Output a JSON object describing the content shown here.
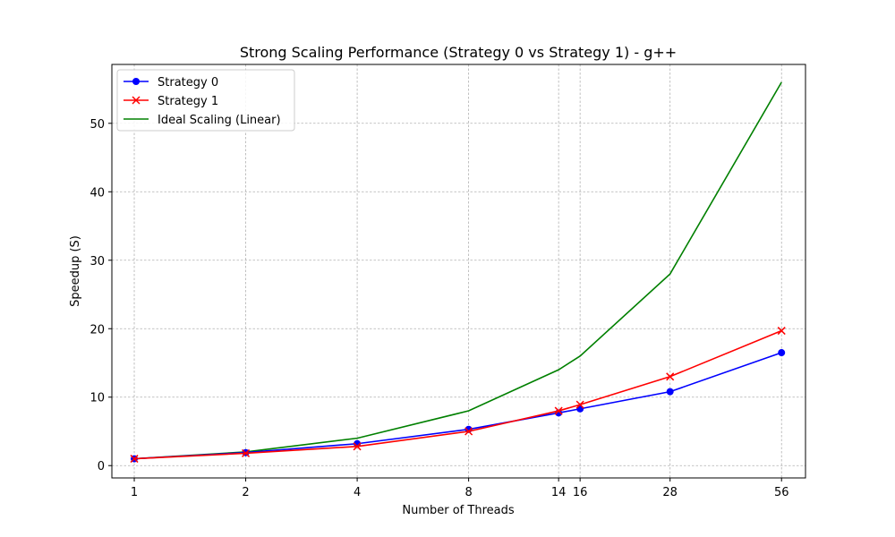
{
  "chart_data": {
    "type": "line",
    "title": "Strong Scaling Performance (Strategy 0 vs Strategy 1) - g++",
    "xlabel": "Number of Threads",
    "ylabel": "Speedup (S)",
    "x_scale": "log2",
    "x": [
      1,
      2,
      4,
      8,
      14,
      16,
      28,
      56
    ],
    "x_tick_labels": [
      "1",
      "2",
      "4",
      "8",
      "14",
      "16",
      "28",
      "56"
    ],
    "y_ticks": [
      0,
      10,
      20,
      30,
      40,
      50
    ],
    "y_tick_labels": [
      "0",
      "10",
      "20",
      "30",
      "40",
      "50"
    ],
    "xlim": [
      0.87,
      65
    ],
    "ylim": [
      -1.8,
      58.6
    ],
    "grid": true,
    "legend_position": "upper-left",
    "series": [
      {
        "name": "Strategy 0",
        "color": "#0000ff",
        "marker": "circle",
        "values": [
          1.0,
          1.9,
          3.2,
          5.3,
          7.7,
          8.3,
          10.8,
          16.5
        ]
      },
      {
        "name": "Strategy 1",
        "color": "#ff0000",
        "marker": "x",
        "values": [
          1.0,
          1.8,
          2.8,
          5.0,
          8.0,
          8.9,
          13.0,
          19.7
        ]
      },
      {
        "name": "Ideal Scaling (Linear)",
        "color": "#008000",
        "marker": "none",
        "values": [
          1,
          2,
          4,
          8,
          14,
          16,
          28,
          56
        ]
      }
    ]
  }
}
